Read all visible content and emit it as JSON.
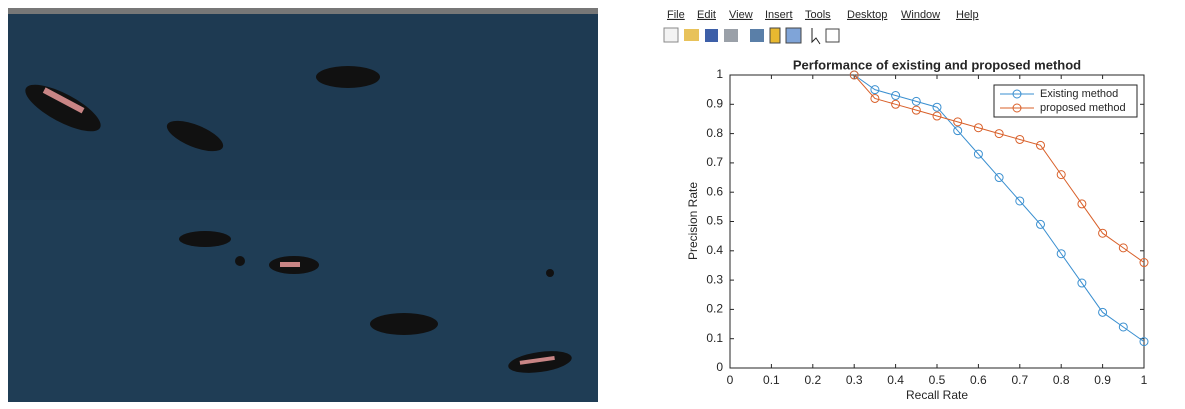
{
  "menu": [
    "File",
    "Edit",
    "View",
    "Insert",
    "Tools",
    "Desktop",
    "Window",
    "Help"
  ],
  "chart_data": {
    "type": "line",
    "title": "Performance of existing and proposed method",
    "x_label": "Recall Rate",
    "y_label": "Precision Rate",
    "x": [
      0.3,
      0.35,
      0.4,
      0.45,
      0.5,
      0.55,
      0.6,
      0.65,
      0.7,
      0.75,
      0.8,
      0.85,
      0.9,
      0.95,
      1
    ],
    "series": [
      {
        "name": "Existing method",
        "color": "#3a8fd0",
        "values": [
          1.0,
          0.95,
          0.93,
          0.91,
          0.89,
          0.81,
          0.73,
          0.65,
          0.57,
          0.49,
          0.39,
          0.29,
          0.19,
          0.14,
          0.09
        ]
      },
      {
        "name": "proposed method",
        "color": "#d9602a",
        "values": [
          1.0,
          0.92,
          0.9,
          0.88,
          0.86,
          0.84,
          0.82,
          0.8,
          0.78,
          0.76,
          0.66,
          0.56,
          0.46,
          0.41,
          0.36
        ]
      }
    ],
    "xlim": [
      0,
      1
    ],
    "xticks": [
      0,
      0.1,
      0.2,
      0.3,
      0.4,
      0.5,
      0.6,
      0.7,
      0.8,
      0.9,
      1
    ],
    "ylim": [
      0,
      1
    ],
    "yticks": [
      0,
      0.1,
      0.2,
      0.3,
      0.4,
      0.5,
      0.6,
      0.7,
      0.8,
      0.9,
      1
    ],
    "legend": "upper right",
    "marker": "circle"
  }
}
